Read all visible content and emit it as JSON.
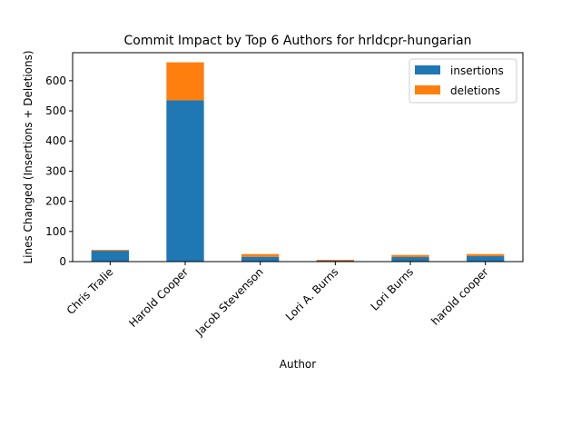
{
  "chart_data": {
    "type": "bar",
    "stacked": true,
    "title": "Commit Impact by Top 6 Authors for hrldcpr-hungarian",
    "xlabel": "Author",
    "ylabel": "Lines Changed (Insertions + Deletions)",
    "categories": [
      "Chris Tralie",
      "Harold Cooper",
      "Jacob Stevenson",
      "Lori A. Burns",
      "Lori Burns",
      "harold cooper"
    ],
    "series": [
      {
        "name": "insertions",
        "color": "#1f77b4",
        "values": [
          36,
          535,
          16,
          3,
          15,
          18
        ]
      },
      {
        "name": "deletions",
        "color": "#ff7f0e",
        "values": [
          3,
          126,
          9,
          3,
          7,
          7
        ]
      }
    ],
    "ylim": [
      0,
      693
    ],
    "yticks": [
      0,
      100,
      200,
      300,
      400,
      500,
      600
    ],
    "grid": false,
    "legend_position": "top-right"
  }
}
